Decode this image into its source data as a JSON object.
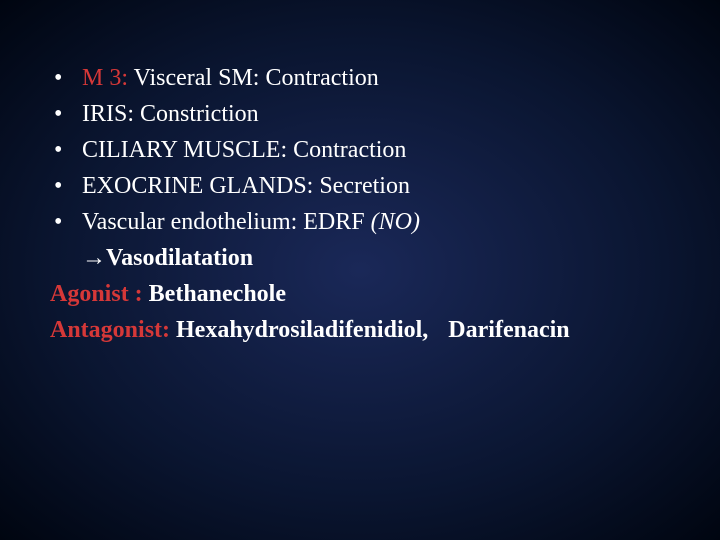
{
  "colors": {
    "background_center": "#1a2858",
    "background_edge": "#000510",
    "text_white": "#ffffff",
    "text_red": "#d63838"
  },
  "typography": {
    "font_family": "Georgia, Times New Roman, serif",
    "font_size_pt": 24,
    "line_height": 1.5
  },
  "bullets": [
    {
      "prefix_red": "M 3: ",
      "rest_white": "Visceral SM: Contraction"
    },
    {
      "prefix_red": "",
      "rest_white": "IRIS: Constriction"
    },
    {
      "prefix_red": "",
      "rest_white": "CILIARY MUSCLE: Contraction"
    },
    {
      "prefix_red": "",
      "rest_white": "EXOCRINE GLANDS: Secretion"
    },
    {
      "prefix_red": "",
      "rest_white": "Vascular endothelium:  EDRF ",
      "italic_suffix": "(NO)"
    }
  ],
  "continuation": {
    "arrow": "→",
    "text": "Vasodilatation"
  },
  "agonist": {
    "label": "Agonist : ",
    "value": "Bethanechole"
  },
  "antagonist": {
    "label": "Antagonist: ",
    "value1": "Hexahydrosiladifenidiol,",
    "value2": "Darifenacin"
  },
  "bullet_char": "•"
}
